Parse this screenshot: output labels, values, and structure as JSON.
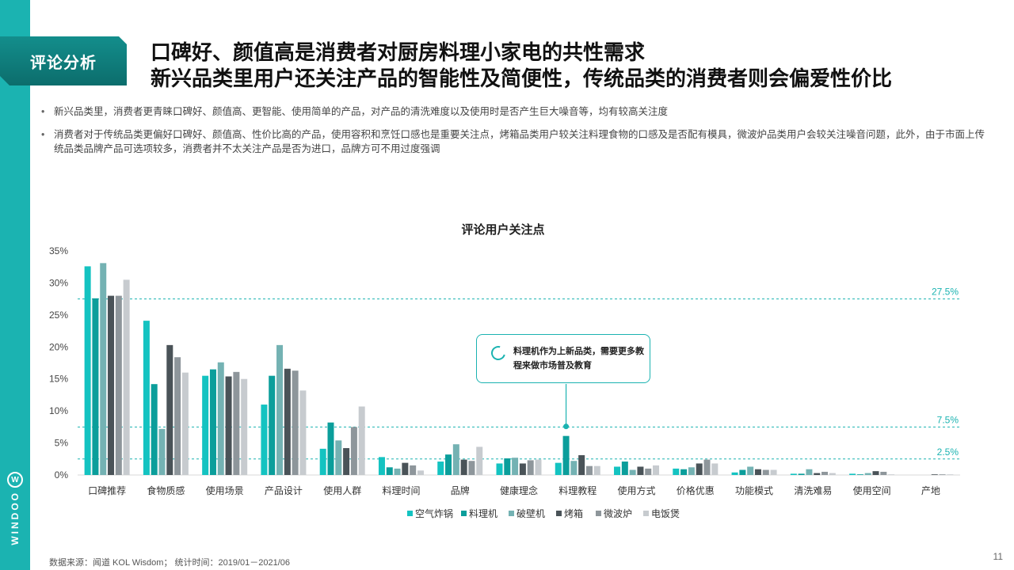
{
  "section_tag": "评论分析",
  "title_line1": "口碑好、颜值高是消费者对厨房料理小家电的共性需求",
  "title_line2": "新兴品类里用户还关注产品的智能性及简便性，传统品类的消费者则会偏爱性价比",
  "bullet1": "新兴品类里，消费者更青睐口碑好、颜值高、更智能、使用简单的产品，对产品的清洗难度以及使用时是否产生巨大噪音等，均有较高关注度",
  "bullet2": "消费者对于传统品类更偏好口碑好、颜值高、性价比高的产品，使用容积和烹饪口感也是重要关注点，烤箱品类用户较关注料理食物的口感及是否配有模具，微波炉品类用户会较关注噪音问题，此外，由于市面上传统品类品牌产品可选项较多，消费者并不太关注产品是否为进口，品牌方可不用过度强调",
  "callout_text": "料理机作为上新品类，需要更多教程来做市场普及教育",
  "source": "数据来源：闻道 KOL Wisdom； 统计时间：2019/01－2021/06",
  "page_number": "11",
  "brand": "WINDOO",
  "chart_data": {
    "type": "bar",
    "title": "评论用户关注点",
    "categories": [
      "口碑推荐",
      "食物质感",
      "使用场景",
      "产品设计",
      "使用人群",
      "料理时间",
      "品牌",
      "健康理念",
      "料理教程",
      "使用方式",
      "价格优惠",
      "功能模式",
      "清洗难易",
      "使用空间",
      "产地"
    ],
    "ylim": [
      0,
      35
    ],
    "yticks": [
      "0%",
      "5%",
      "10%",
      "15%",
      "20%",
      "25%",
      "30%",
      "35%"
    ],
    "reference_lines": [
      {
        "value": 27.5,
        "label": "27.5%"
      },
      {
        "value": 7.5,
        "label": "7.5%"
      },
      {
        "value": 2.5,
        "label": "2.5%"
      }
    ],
    "callout_category": "料理教程",
    "callout_series": "料理机",
    "legend_position": "bottom",
    "series": [
      {
        "name": "空气炸锅",
        "color": "#14c3c1",
        "values": [
          32.6,
          24.1,
          15.5,
          11.0,
          4.1,
          2.8,
          2.1,
          1.8,
          1.9,
          1.3,
          1.0,
          0.4,
          0.2,
          0.2,
          0.0
        ]
      },
      {
        "name": "料理机",
        "color": "#0b9e9b",
        "values": [
          27.6,
          14.2,
          16.5,
          15.5,
          8.2,
          1.2,
          3.2,
          2.6,
          6.1,
          2.1,
          0.9,
          0.8,
          0.2,
          0.1,
          0.0
        ]
      },
      {
        "name": "破壁机",
        "color": "#74b2b3",
        "values": [
          33.1,
          7.2,
          17.6,
          20.3,
          5.4,
          1.0,
          4.8,
          2.7,
          2.2,
          0.8,
          1.2,
          1.3,
          0.9,
          0.3,
          0.0
        ]
      },
      {
        "name": "烤箱",
        "color": "#4a5358",
        "values": [
          28.0,
          20.3,
          15.4,
          16.6,
          4.2,
          1.9,
          2.4,
          1.8,
          3.1,
          1.3,
          1.8,
          0.9,
          0.3,
          0.6,
          0.1
        ]
      },
      {
        "name": "微波炉",
        "color": "#8e969b",
        "values": [
          28.0,
          18.4,
          16.1,
          16.3,
          7.5,
          1.5,
          2.2,
          2.3,
          1.4,
          1.0,
          2.4,
          0.8,
          0.5,
          0.5,
          0.1
        ]
      },
      {
        "name": "电饭煲",
        "color": "#c7cbcf",
        "values": [
          30.5,
          16.0,
          15.0,
          13.2,
          10.7,
          0.7,
          4.4,
          2.4,
          1.4,
          1.5,
          1.8,
          0.8,
          0.3,
          0.1,
          0.1
        ]
      }
    ]
  }
}
